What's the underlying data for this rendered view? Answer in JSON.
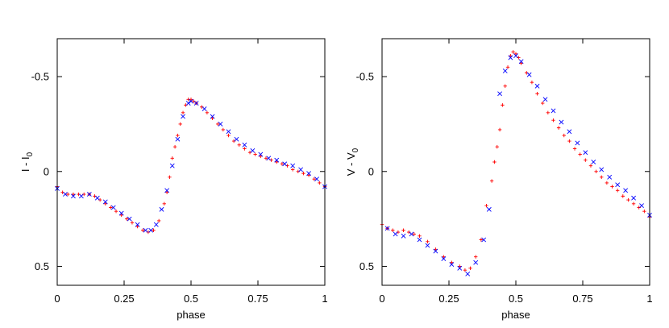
{
  "chart_data": [
    {
      "type": "scatter",
      "title": "",
      "xlabel": "phase",
      "ylabel_main": "I - I",
      "ylabel_sub": "0",
      "xlim": [
        0,
        1
      ],
      "ylim": [
        -0.7,
        0.6
      ],
      "y_inverted": true,
      "xticks": [
        0,
        0.25,
        0.5,
        0.75,
        1
      ],
      "xtick_labels": [
        "0",
        "0.25",
        "0.5",
        "0.75",
        "1"
      ],
      "yticks": [
        -0.5,
        0,
        0.5
      ],
      "ytick_labels": [
        "-0.5",
        "0",
        "0.5"
      ],
      "grid": false,
      "legend": "none",
      "series": [
        {
          "color": "#ff0000",
          "marker": "plus",
          "points_x": [
            0,
            0.02,
            0.04,
            0.06,
            0.08,
            0.1,
            0.12,
            0.14,
            0.16,
            0.18,
            0.2,
            0.22,
            0.24,
            0.26,
            0.28,
            0.3,
            0.32,
            0.34,
            0.36,
            0.38,
            0.4,
            0.41,
            0.42,
            0.43,
            0.44,
            0.45,
            0.46,
            0.47,
            0.48,
            0.49,
            0.5,
            0.51,
            0.52,
            0.54,
            0.56,
            0.58,
            0.6,
            0.62,
            0.64,
            0.66,
            0.68,
            0.7,
            0.72,
            0.74,
            0.76,
            0.78,
            0.8,
            0.82,
            0.84,
            0.86,
            0.88,
            0.9,
            0.92,
            0.94,
            0.96,
            0.98,
            1.0
          ],
          "points_y": [
            0.08,
            0.11,
            0.12,
            0.12,
            0.12,
            0.12,
            0.12,
            0.13,
            0.15,
            0.17,
            0.19,
            0.21,
            0.23,
            0.25,
            0.27,
            0.29,
            0.31,
            0.32,
            0.31,
            0.26,
            0.17,
            0.11,
            0.03,
            -0.07,
            -0.13,
            -0.19,
            -0.25,
            -0.31,
            -0.35,
            -0.38,
            -0.38,
            -0.37,
            -0.36,
            -0.34,
            -0.31,
            -0.28,
            -0.25,
            -0.22,
            -0.19,
            -0.16,
            -0.14,
            -0.12,
            -0.1,
            -0.09,
            -0.08,
            -0.07,
            -0.06,
            -0.05,
            -0.04,
            -0.03,
            -0.01,
            0.0,
            0.01,
            0.02,
            0.04,
            0.06,
            0.08
          ]
        },
        {
          "color": "#0000ff",
          "marker": "cross",
          "points_x": [
            0,
            0.03,
            0.06,
            0.09,
            0.12,
            0.15,
            0.18,
            0.21,
            0.24,
            0.27,
            0.3,
            0.33,
            0.35,
            0.37,
            0.39,
            0.41,
            0.43,
            0.45,
            0.47,
            0.49,
            0.5,
            0.52,
            0.55,
            0.58,
            0.61,
            0.64,
            0.67,
            0.7,
            0.73,
            0.76,
            0.79,
            0.82,
            0.85,
            0.88,
            0.91,
            0.94,
            0.97,
            1.0
          ],
          "points_y": [
            0.09,
            0.12,
            0.13,
            0.13,
            0.12,
            0.14,
            0.16,
            0.19,
            0.22,
            0.25,
            0.28,
            0.31,
            0.31,
            0.28,
            0.2,
            0.1,
            -0.03,
            -0.17,
            -0.29,
            -0.36,
            -0.37,
            -0.36,
            -0.33,
            -0.29,
            -0.25,
            -0.21,
            -0.17,
            -0.14,
            -0.11,
            -0.09,
            -0.07,
            -0.06,
            -0.04,
            -0.03,
            -0.01,
            0.01,
            0.04,
            0.08
          ]
        }
      ]
    },
    {
      "type": "scatter",
      "title": "",
      "xlabel": "phase",
      "ylabel_main": "V - V",
      "ylabel_sub": "0",
      "xlim": [
        0,
        1
      ],
      "ylim": [
        -0.7,
        0.6
      ],
      "y_inverted": true,
      "xticks": [
        0,
        0.25,
        0.5,
        0.75,
        1
      ],
      "xtick_labels": [
        "0",
        "0.25",
        "0.5",
        "0.75",
        "1"
      ],
      "yticks": [
        -0.5,
        0,
        0.5
      ],
      "ytick_labels": [
        "-0.5",
        "0",
        "0.5"
      ],
      "grid": false,
      "legend": "none",
      "series": [
        {
          "color": "#ff0000",
          "marker": "plus",
          "points_x": [
            0.0,
            0.02,
            0.04,
            0.06,
            0.08,
            0.1,
            0.12,
            0.14,
            0.17,
            0.2,
            0.23,
            0.26,
            0.29,
            0.31,
            0.33,
            0.35,
            0.37,
            0.39,
            0.41,
            0.42,
            0.43,
            0.44,
            0.45,
            0.46,
            0.47,
            0.48,
            0.49,
            0.5,
            0.51,
            0.52,
            0.54,
            0.56,
            0.58,
            0.6,
            0.62,
            0.64,
            0.66,
            0.68,
            0.7,
            0.72,
            0.74,
            0.76,
            0.78,
            0.8,
            0.82,
            0.84,
            0.86,
            0.88,
            0.9,
            0.92,
            0.94,
            0.96,
            0.98,
            1.0
          ],
          "points_y": [
            0.28,
            0.3,
            0.31,
            0.32,
            0.31,
            0.32,
            0.33,
            0.34,
            0.37,
            0.41,
            0.45,
            0.48,
            0.5,
            0.52,
            0.51,
            0.45,
            0.36,
            0.18,
            0.05,
            -0.05,
            -0.13,
            -0.22,
            -0.35,
            -0.45,
            -0.55,
            -0.61,
            -0.63,
            -0.62,
            -0.6,
            -0.57,
            -0.52,
            -0.47,
            -0.41,
            -0.36,
            -0.31,
            -0.27,
            -0.23,
            -0.19,
            -0.16,
            -0.12,
            -0.09,
            -0.06,
            -0.03,
            0.0,
            0.03,
            0.06,
            0.08,
            0.1,
            0.13,
            0.15,
            0.17,
            0.19,
            0.21,
            0.24
          ]
        },
        {
          "color": "#0000ff",
          "marker": "cross",
          "points_x": [
            0.02,
            0.05,
            0.08,
            0.11,
            0.14,
            0.17,
            0.2,
            0.23,
            0.26,
            0.29,
            0.32,
            0.35,
            0.38,
            0.4,
            0.44,
            0.46,
            0.48,
            0.5,
            0.52,
            0.55,
            0.58,
            0.61,
            0.64,
            0.67,
            0.7,
            0.73,
            0.76,
            0.79,
            0.82,
            0.85,
            0.88,
            0.91,
            0.94,
            0.97,
            1.0
          ],
          "points_y": [
            0.3,
            0.33,
            0.34,
            0.33,
            0.36,
            0.39,
            0.42,
            0.46,
            0.49,
            0.51,
            0.54,
            0.48,
            0.36,
            0.2,
            -0.41,
            -0.53,
            -0.6,
            -0.61,
            -0.58,
            -0.51,
            -0.45,
            -0.38,
            -0.32,
            -0.26,
            -0.21,
            -0.15,
            -0.1,
            -0.05,
            -0.01,
            0.03,
            0.07,
            0.1,
            0.14,
            0.18,
            0.23
          ]
        }
      ]
    }
  ]
}
